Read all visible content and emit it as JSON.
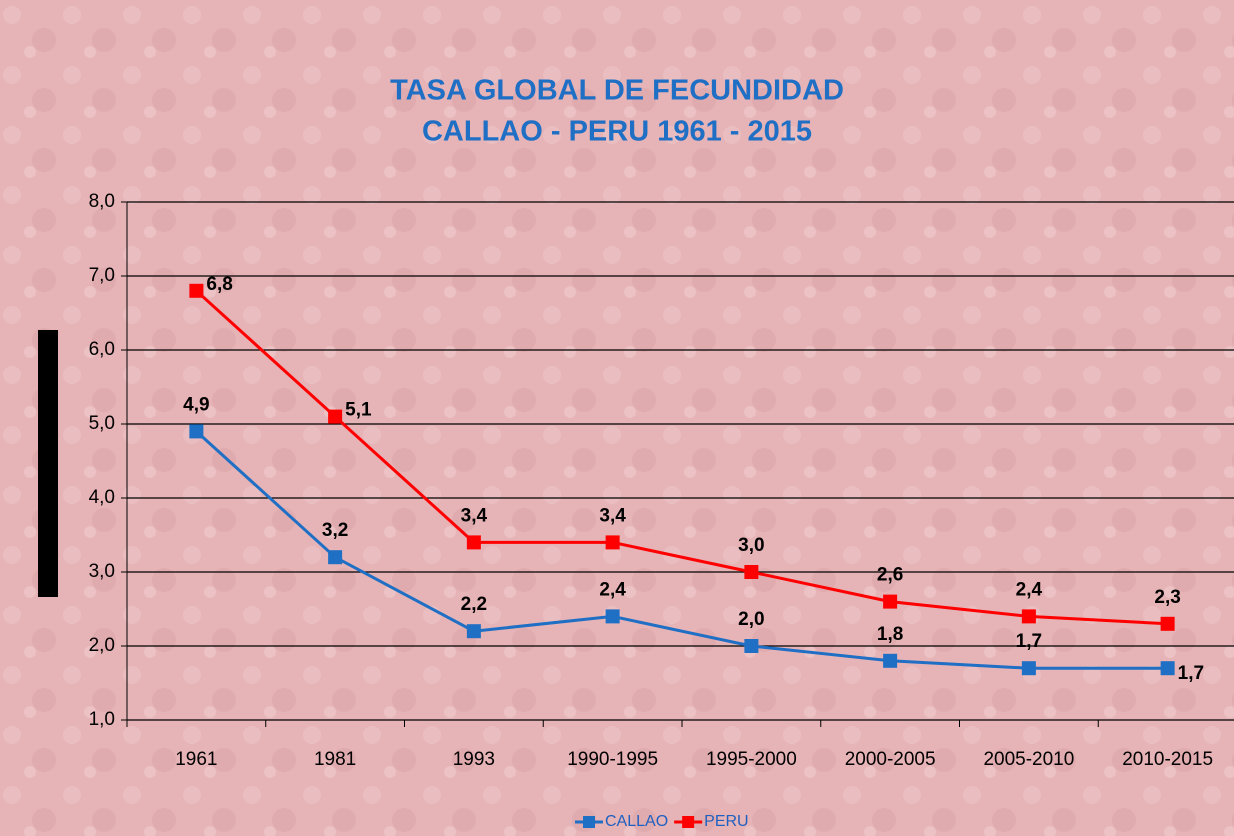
{
  "chart_data": {
    "type": "line",
    "title": [
      "TASA GLOBAL DE FECUNDIDAD",
      "CALLAO - PERU 1961 - 2015"
    ],
    "categories": [
      "1961",
      "1981",
      "1993",
      "1990-1995",
      "1995-2000",
      "2000-2005",
      "2005-2010",
      "2010-2015"
    ],
    "series": [
      {
        "name": "CALLAO",
        "color": "#1f6fc5",
        "values": [
          4.9,
          3.2,
          2.2,
          2.4,
          2.0,
          1.8,
          1.7,
          1.7
        ],
        "value_labels": [
          "4,9",
          "3,2",
          "2,2",
          "2,4",
          "2,0",
          "1,8",
          "1,7",
          "1,7"
        ]
      },
      {
        "name": "PERU",
        "color": "#ff0000",
        "values": [
          6.8,
          5.1,
          3.4,
          3.4,
          3.0,
          2.6,
          2.4,
          2.3
        ],
        "value_labels": [
          "6,8",
          "5,1",
          "3,4",
          "3,4",
          "3,0",
          "2,6",
          "2,4",
          "2,3"
        ]
      }
    ],
    "ylim": [
      1,
      8
    ],
    "yticks": [
      {
        "value": 1,
        "label": "1,0"
      },
      {
        "value": 2,
        "label": "2,0"
      },
      {
        "value": 3,
        "label": "3,0"
      },
      {
        "value": 4,
        "label": "4,0"
      },
      {
        "value": 5,
        "label": "5,0"
      },
      {
        "value": 6,
        "label": "6,0"
      },
      {
        "value": 7,
        "label": "7,0"
      },
      {
        "value": 8,
        "label": "8,0"
      }
    ],
    "grid": true,
    "legend": "bottom"
  }
}
